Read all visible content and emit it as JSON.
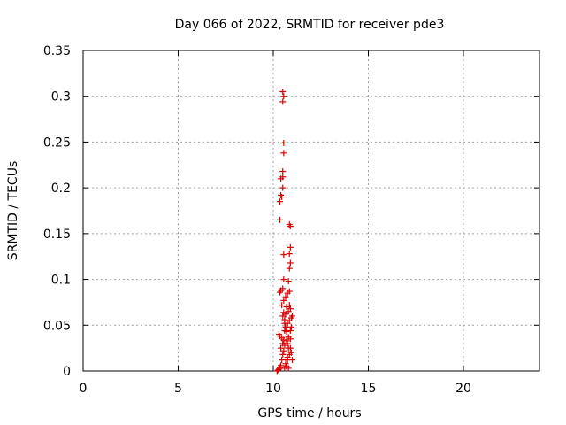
{
  "chart_data": {
    "type": "scatter",
    "title": "Day 066 of 2022, SRMTID for receiver pde3",
    "xlabel": "GPS time / hours",
    "ylabel": "SRMTID / TECUs",
    "xlim": [
      0,
      24
    ],
    "ylim": [
      0,
      0.35
    ],
    "xticks": [
      0,
      5,
      10,
      15,
      20
    ],
    "yticks": [
      0,
      0.05,
      0.1,
      0.15,
      0.2,
      0.25,
      0.3,
      0.35
    ],
    "xtick_labels": [
      "0",
      "5",
      "10",
      "15",
      "20"
    ],
    "ytick_labels": [
      "0",
      "0.05",
      "0.1",
      "0.15",
      "0.2",
      "0.25",
      "0.3",
      "0.35"
    ],
    "grid": true,
    "marker": "+",
    "color": "#dd0000",
    "series": [
      {
        "name": "pde3",
        "points": [
          [
            10.2,
            0.0
          ],
          [
            10.25,
            0.001
          ],
          [
            10.3,
            0.002
          ],
          [
            10.35,
            0.004
          ],
          [
            10.4,
            0.006
          ],
          [
            10.45,
            0.012
          ],
          [
            10.5,
            0.018
          ],
          [
            10.55,
            0.022
          ],
          [
            10.6,
            0.003
          ],
          [
            10.65,
            0.008
          ],
          [
            10.7,
            0.005
          ],
          [
            10.75,
            0.012
          ],
          [
            10.8,
            0.003
          ],
          [
            10.85,
            0.018
          ],
          [
            10.9,
            0.025
          ],
          [
            11.0,
            0.012
          ],
          [
            10.95,
            0.02
          ],
          [
            10.4,
            0.025
          ],
          [
            10.5,
            0.03
          ],
          [
            10.6,
            0.028
          ],
          [
            10.7,
            0.033
          ],
          [
            10.8,
            0.037
          ],
          [
            10.3,
            0.04
          ],
          [
            10.35,
            0.038
          ],
          [
            10.45,
            0.036
          ],
          [
            10.55,
            0.034
          ],
          [
            10.6,
            0.044
          ],
          [
            10.65,
            0.048
          ],
          [
            10.75,
            0.052
          ],
          [
            10.85,
            0.055
          ],
          [
            10.95,
            0.058
          ],
          [
            11.0,
            0.06
          ],
          [
            10.5,
            0.06
          ],
          [
            10.55,
            0.064
          ],
          [
            10.6,
            0.052
          ],
          [
            10.7,
            0.07
          ],
          [
            10.8,
            0.065
          ],
          [
            10.9,
            0.068
          ],
          [
            10.45,
            0.072
          ],
          [
            10.55,
            0.077
          ],
          [
            10.65,
            0.081
          ],
          [
            10.75,
            0.085
          ],
          [
            10.85,
            0.087
          ],
          [
            10.35,
            0.086
          ],
          [
            10.4,
            0.088
          ],
          [
            10.5,
            0.09
          ],
          [
            10.55,
            0.1
          ],
          [
            10.8,
            0.098
          ],
          [
            10.85,
            0.112
          ],
          [
            10.9,
            0.118
          ],
          [
            10.85,
            0.128
          ],
          [
            10.9,
            0.135
          ],
          [
            10.55,
            0.127
          ],
          [
            10.9,
            0.158
          ],
          [
            10.85,
            0.16
          ],
          [
            10.35,
            0.165
          ],
          [
            10.35,
            0.185
          ],
          [
            10.45,
            0.19
          ],
          [
            10.4,
            0.192
          ],
          [
            10.5,
            0.2
          ],
          [
            10.4,
            0.21
          ],
          [
            10.5,
            0.212
          ],
          [
            10.5,
            0.218
          ],
          [
            10.55,
            0.238
          ],
          [
            10.55,
            0.249
          ],
          [
            10.5,
            0.294
          ],
          [
            10.55,
            0.3
          ],
          [
            10.5,
            0.305
          ],
          [
            10.75,
            0.015
          ],
          [
            10.8,
            0.025
          ],
          [
            10.7,
            0.043
          ],
          [
            10.9,
            0.044
          ],
          [
            10.6,
            0.056
          ],
          [
            10.65,
            0.062
          ],
          [
            10.95,
            0.048
          ],
          [
            10.85,
            0.072
          ],
          [
            10.75,
            0.03
          ],
          [
            10.9,
            0.035
          ]
        ]
      }
    ]
  }
}
